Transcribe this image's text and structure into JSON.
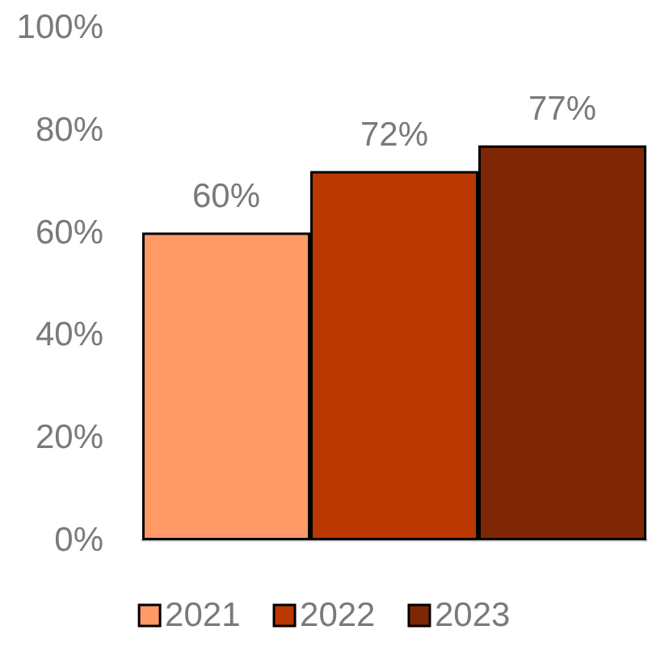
{
  "chart_data": {
    "type": "bar",
    "categories": [
      null
    ],
    "series": [
      {
        "name": "2021",
        "color": "#ff9966",
        "values": [
          60
        ],
        "value_labels": [
          "60%"
        ]
      },
      {
        "name": "2022",
        "color": "#bb3803",
        "values": [
          72
        ],
        "value_labels": [
          "72%"
        ]
      },
      {
        "name": "2023",
        "color": "#7f2704",
        "values": [
          77
        ],
        "value_labels": [
          "77%"
        ]
      }
    ],
    "ylim": [
      0,
      100
    ],
    "yticks": [
      {
        "value": 0,
        "label": "0%"
      },
      {
        "value": 20,
        "label": "20%"
      },
      {
        "value": 40,
        "label": "40%"
      },
      {
        "value": 60,
        "label": "60%"
      },
      {
        "value": 80,
        "label": "80%"
      },
      {
        "value": 100,
        "label": "100%"
      }
    ],
    "legend": "bottom"
  }
}
